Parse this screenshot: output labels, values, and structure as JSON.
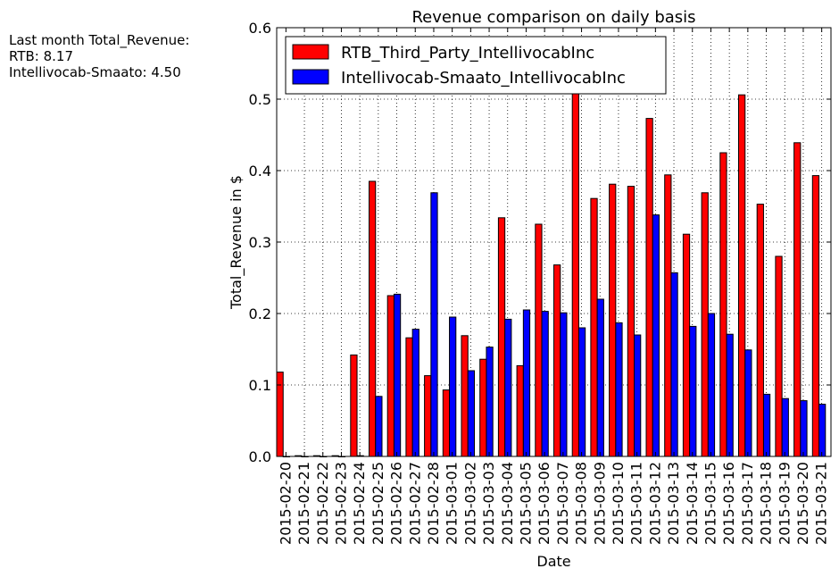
{
  "side_note": {
    "line1": "Last month Total_Revenue:",
    "line2": "RTB: 8.17",
    "line3": "Intellivocab-Smaato: 4.50"
  },
  "chart_data": {
    "type": "bar",
    "title": "Revenue comparison on daily basis",
    "xlabel": "Date",
    "ylabel": "Total_Revenue in $",
    "ylim": [
      0,
      0.6
    ],
    "yticks": [
      "0.0",
      "0.1",
      "0.2",
      "0.3",
      "0.4",
      "0.5",
      "0.6"
    ],
    "grid": true,
    "legend": "top-left",
    "categories": [
      "2015-02-20",
      "2015-02-21",
      "2015-02-22",
      "2015-02-23",
      "2015-02-24",
      "2015-02-25",
      "2015-02-26",
      "2015-02-27",
      "2015-02-28",
      "2015-03-01",
      "2015-03-02",
      "2015-03-03",
      "2015-03-04",
      "2015-03-05",
      "2015-03-06",
      "2015-03-07",
      "2015-03-08",
      "2015-03-09",
      "2015-03-10",
      "2015-03-11",
      "2015-03-12",
      "2015-03-13",
      "2015-03-14",
      "2015-03-15",
      "2015-03-16",
      "2015-03-17",
      "2015-03-18",
      "2015-03-19",
      "2015-03-20",
      "2015-03-21"
    ],
    "series": [
      {
        "name": "RTB_Third_Party_IntellivocabInc",
        "color": "#ff0000",
        "values": [
          0.118,
          0.001,
          0.001,
          0.001,
          0.142,
          0.385,
          0.225,
          0.166,
          0.113,
          0.093,
          0.169,
          0.136,
          0.334,
          0.127,
          0.325,
          0.268,
          0.51,
          0.361,
          0.381,
          0.378,
          0.473,
          0.394,
          0.311,
          0.369,
          0.425,
          0.506,
          0.353,
          0.28,
          0.439,
          0.393
        ]
      },
      {
        "name": "Intellivocab-Smaato_IntellivocabInc",
        "color": "#0000ff",
        "values": [
          0.0,
          0.0,
          0.0,
          0.0,
          0.001,
          0.084,
          0.227,
          0.178,
          0.369,
          0.195,
          0.12,
          0.153,
          0.192,
          0.205,
          0.203,
          0.201,
          0.18,
          0.22,
          0.187,
          0.17,
          0.338,
          0.257,
          0.182,
          0.2,
          0.171,
          0.149,
          0.087,
          0.081,
          0.078,
          0.073
        ]
      }
    ]
  }
}
